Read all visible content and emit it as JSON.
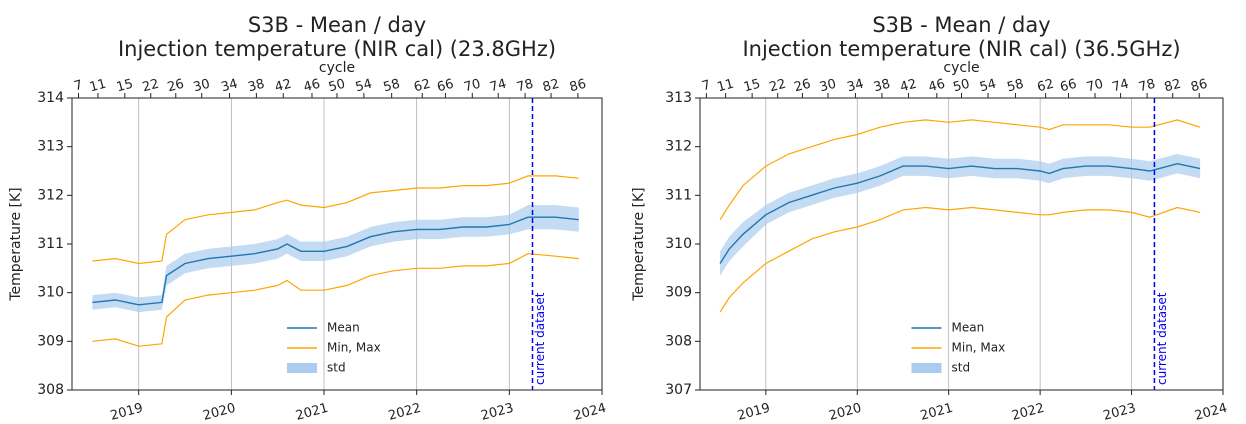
{
  "chart_data": [
    {
      "type": "line",
      "title": [
        "S3B - Mean / day",
        "Injection temperature (NIR cal) (23.8GHz)"
      ],
      "x2label": "cycle",
      "ylabel": "Temperature [K]",
      "xlim": [
        2018.28,
        2024.0
      ],
      "xticks": [
        2019,
        2020,
        2021,
        2022,
        2023,
        2024
      ],
      "x2ticks": [
        {
          "value": 2018.35,
          "label": "7"
        },
        {
          "value": 2018.56,
          "label": "11"
        },
        {
          "value": 2018.85,
          "label": "15"
        },
        {
          "value": 2019.13,
          "label": "22"
        },
        {
          "value": 2019.4,
          "label": "26"
        },
        {
          "value": 2019.68,
          "label": "30"
        },
        {
          "value": 2019.98,
          "label": "34"
        },
        {
          "value": 2020.27,
          "label": "38"
        },
        {
          "value": 2020.56,
          "label": "42"
        },
        {
          "value": 2020.87,
          "label": "46"
        },
        {
          "value": 2021.14,
          "label": "50"
        },
        {
          "value": 2021.43,
          "label": "54"
        },
        {
          "value": 2021.73,
          "label": "58"
        },
        {
          "value": 2022.06,
          "label": "62"
        },
        {
          "value": 2022.31,
          "label": "66"
        },
        {
          "value": 2022.6,
          "label": "70"
        },
        {
          "value": 2022.88,
          "label": "74"
        },
        {
          "value": 2023.17,
          "label": "78"
        },
        {
          "value": 2023.45,
          "label": "82"
        },
        {
          "value": 2023.74,
          "label": "86"
        }
      ],
      "ylim": [
        308,
        314
      ],
      "yticks": [
        308,
        309,
        310,
        311,
        312,
        313,
        314
      ],
      "grid": true,
      "legend": "lower center",
      "x": [
        2018.5,
        2018.75,
        2019.0,
        2019.25,
        2019.3,
        2019.5,
        2019.75,
        2020.0,
        2020.25,
        2020.5,
        2020.6,
        2020.75,
        2021.0,
        2021.25,
        2021.5,
        2021.75,
        2022.0,
        2022.25,
        2022.5,
        2022.75,
        2023.0,
        2023.2,
        2023.5,
        2023.75
      ],
      "series": [
        {
          "name": "Mean",
          "color": "#1f77b4",
          "values": [
            309.8,
            309.85,
            309.75,
            309.8,
            310.35,
            310.6,
            310.7,
            310.75,
            310.8,
            310.9,
            311.0,
            310.85,
            310.85,
            310.95,
            311.15,
            311.25,
            311.3,
            311.3,
            311.35,
            311.35,
            311.4,
            311.55,
            311.55,
            311.5
          ]
        },
        {
          "name": "Min, Max",
          "color": "#ffa500",
          "min": [
            309.0,
            309.05,
            308.9,
            308.95,
            309.5,
            309.85,
            309.95,
            310.0,
            310.05,
            310.15,
            310.25,
            310.05,
            310.05,
            310.15,
            310.35,
            310.45,
            310.5,
            310.5,
            310.55,
            310.55,
            310.6,
            310.8,
            310.75,
            310.7
          ],
          "max": [
            310.65,
            310.7,
            310.6,
            310.65,
            311.2,
            311.5,
            311.6,
            311.65,
            311.7,
            311.85,
            311.9,
            311.8,
            311.75,
            311.85,
            312.05,
            312.1,
            312.15,
            312.15,
            312.2,
            312.2,
            312.25,
            312.4,
            312.4,
            312.35
          ]
        },
        {
          "name": "std",
          "color": "#aaccee",
          "values": [
            0.15,
            0.15,
            0.15,
            0.15,
            0.2,
            0.2,
            0.2,
            0.2,
            0.2,
            0.2,
            0.2,
            0.2,
            0.2,
            0.2,
            0.2,
            0.2,
            0.2,
            0.2,
            0.2,
            0.2,
            0.2,
            0.25,
            0.25,
            0.25
          ]
        }
      ],
      "annotations": [
        {
          "text": "current dataset",
          "x": 2023.25,
          "color": "#0000ee"
        }
      ]
    },
    {
      "type": "line",
      "title": [
        "S3B - Mean / day",
        "Injection temperature (NIR cal) (36.5GHz)"
      ],
      "x2label": "cycle",
      "ylabel": "Temperature [K]",
      "xlim": [
        2018.28,
        2024.0
      ],
      "xticks": [
        2019,
        2020,
        2021,
        2022,
        2023,
        2024
      ],
      "x2ticks": [
        {
          "value": 2018.35,
          "label": "7"
        },
        {
          "value": 2018.56,
          "label": "11"
        },
        {
          "value": 2018.85,
          "label": "15"
        },
        {
          "value": 2019.13,
          "label": "22"
        },
        {
          "value": 2019.4,
          "label": "26"
        },
        {
          "value": 2019.68,
          "label": "30"
        },
        {
          "value": 2019.98,
          "label": "34"
        },
        {
          "value": 2020.27,
          "label": "38"
        },
        {
          "value": 2020.56,
          "label": "42"
        },
        {
          "value": 2020.87,
          "label": "46"
        },
        {
          "value": 2021.14,
          "label": "50"
        },
        {
          "value": 2021.43,
          "label": "54"
        },
        {
          "value": 2021.73,
          "label": "58"
        },
        {
          "value": 2022.06,
          "label": "62"
        },
        {
          "value": 2022.31,
          "label": "66"
        },
        {
          "value": 2022.6,
          "label": "70"
        },
        {
          "value": 2022.88,
          "label": "74"
        },
        {
          "value": 2023.17,
          "label": "78"
        },
        {
          "value": 2023.45,
          "label": "82"
        },
        {
          "value": 2023.74,
          "label": "86"
        }
      ],
      "ylim": [
        307,
        313
      ],
      "yticks": [
        307,
        308,
        309,
        310,
        311,
        312,
        313
      ],
      "grid": true,
      "legend": "lower center",
      "x": [
        2018.5,
        2018.6,
        2018.75,
        2019.0,
        2019.25,
        2019.5,
        2019.75,
        2020.0,
        2020.25,
        2020.5,
        2020.75,
        2021.0,
        2021.25,
        2021.5,
        2021.75,
        2022.0,
        2022.1,
        2022.25,
        2022.5,
        2022.75,
        2023.0,
        2023.2,
        2023.5,
        2023.75
      ],
      "series": [
        {
          "name": "Mean",
          "color": "#1f77b4",
          "values": [
            309.6,
            309.9,
            310.2,
            310.6,
            310.85,
            311.0,
            311.15,
            311.25,
            311.4,
            311.6,
            311.6,
            311.55,
            311.6,
            311.55,
            311.55,
            311.5,
            311.45,
            311.55,
            311.6,
            311.6,
            311.55,
            311.5,
            311.65,
            311.55
          ]
        },
        {
          "name": "Min, Max",
          "color": "#ffa500",
          "min": [
            308.6,
            308.9,
            309.2,
            309.6,
            309.85,
            310.1,
            310.25,
            310.35,
            310.5,
            310.7,
            310.75,
            310.7,
            310.75,
            310.7,
            310.65,
            310.6,
            310.6,
            310.65,
            310.7,
            310.7,
            310.65,
            310.55,
            310.75,
            310.65
          ],
          "max": [
            310.5,
            310.8,
            311.2,
            311.6,
            311.85,
            312.0,
            312.15,
            312.25,
            312.4,
            312.5,
            312.55,
            312.5,
            312.55,
            312.5,
            312.45,
            312.4,
            312.35,
            312.45,
            312.45,
            312.45,
            312.4,
            312.4,
            312.55,
            312.4
          ]
        },
        {
          "name": "std",
          "color": "#aaccee",
          "values": [
            0.25,
            0.25,
            0.25,
            0.2,
            0.2,
            0.2,
            0.2,
            0.2,
            0.2,
            0.2,
            0.2,
            0.2,
            0.2,
            0.2,
            0.2,
            0.2,
            0.2,
            0.2,
            0.2,
            0.2,
            0.2,
            0.2,
            0.2,
            0.2
          ]
        }
      ],
      "annotations": [
        {
          "text": "current dataset",
          "x": 2023.25,
          "color": "#0000ee"
        }
      ]
    }
  ]
}
